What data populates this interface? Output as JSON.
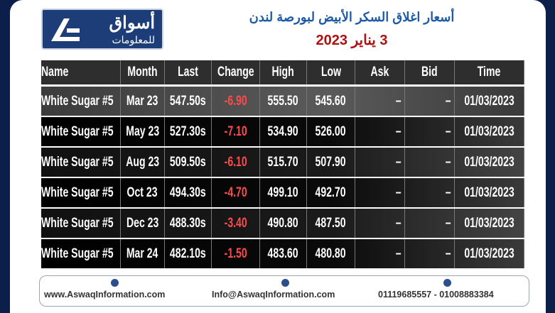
{
  "header": {
    "logo_line1": "أسواق",
    "logo_line2": "للمعلومات",
    "title": "أسعار اغلاق السكر الأبيض لبورصة لندن",
    "subtitle": "3 يناير 2023"
  },
  "table": {
    "columns": [
      "Name",
      "Month",
      "Last",
      "Change",
      "High",
      "Low",
      "Ask",
      "Bid",
      "Time"
    ],
    "rows": [
      [
        "White Sugar #5",
        "Mar 23",
        "547.50s",
        "-6.90",
        "555.50",
        "545.60",
        "–",
        "–",
        "01/03/2023"
      ],
      [
        "White Sugar #5",
        "May 23",
        "527.30s",
        "-7.10",
        "534.90",
        "526.00",
        "–",
        "–",
        "01/03/2023"
      ],
      [
        "White Sugar #5",
        "Aug 23",
        "509.50s",
        "-6.10",
        "515.70",
        "507.90",
        "–",
        "–",
        "01/03/2023"
      ],
      [
        "White Sugar #5",
        "Oct 23",
        "494.30s",
        "-4.70",
        "499.10",
        "492.70",
        "–",
        "–",
        "01/03/2023"
      ],
      [
        "White Sugar #5",
        "Dec 23",
        "488.30s",
        "-3.40",
        "490.80",
        "487.50",
        "–",
        "–",
        "01/03/2023"
      ],
      [
        "White Sugar #5",
        "Mar 24",
        "482.10s",
        "-1.50",
        "483.60",
        "480.80",
        "–",
        "–",
        "01/03/2023"
      ]
    ]
  },
  "footer": {
    "website": "www.AswaqInformation.com",
    "email": "Info@AswaqInformation.com",
    "phones": "01119685557 - 01008883384"
  }
}
